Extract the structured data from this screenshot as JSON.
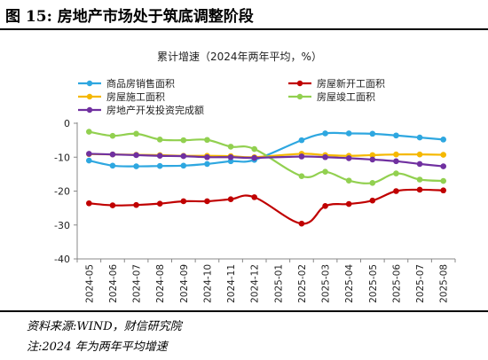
{
  "figure_title": "图 15:  房地产市场处于筑底调整阶段",
  "notes": {
    "source": "资料来源:WIND，财信研究院",
    "note": "注:2024 年为两年平均增速"
  },
  "chart_data": {
    "type": "line",
    "title": "累计增速（2024年两年平均，%）",
    "categories": [
      "2024-05",
      "2024-06",
      "2024-07",
      "2024-08",
      "2024-09",
      "2024-10",
      "2024-11",
      "2024-12",
      "2025-01",
      "2025-02",
      "2025-03",
      "2025-04",
      "2025-05",
      "2025-06",
      "2025-07",
      "2025-08"
    ],
    "ylim": [
      -40,
      0
    ],
    "yticks": [
      0,
      -10,
      -20,
      -30,
      -40
    ],
    "ytick_labels": [
      "0",
      "-10",
      "-20",
      "-30",
      "-40"
    ],
    "grid": false,
    "legend_position": "top",
    "series": [
      {
        "name": "商品房销售面积",
        "color": "#2ea7e0",
        "values": [
          -11,
          -12.5,
          -12.7,
          -12.6,
          -12.5,
          -12,
          -11.2,
          -10.8,
          null,
          -5,
          -3,
          -3,
          -3.1,
          -3.6,
          -4.2,
          -4.8
        ]
      },
      {
        "name": "房屋新开工面积",
        "color": "#c00000",
        "values": [
          -23.6,
          -24.2,
          -24.1,
          -23.7,
          -23,
          -23,
          -22.4,
          -21.8,
          null,
          -29.6,
          -24.4,
          -23.8,
          -22.8,
          -20,
          -19.6,
          -19.8
        ]
      },
      {
        "name": "房屋施工面积",
        "color": "#f5b800",
        "values": [
          -9.1,
          -9.2,
          -9.3,
          -9.4,
          -9.6,
          -9.6,
          -9.7,
          -10,
          null,
          -9,
          -9.4,
          -9.6,
          -9.4,
          -9.2,
          -9.2,
          -9.3
        ]
      },
      {
        "name": "房屋竣工面积",
        "color": "#92d050",
        "values": [
          -2.5,
          -3.7,
          -3.1,
          -4.8,
          -5,
          -4.9,
          -6.9,
          -7.6,
          null,
          -15.6,
          -14.3,
          -16.9,
          -17.6,
          -14.8,
          -16.6,
          -17
        ]
      },
      {
        "name": "房地产开发投资完成额",
        "color": "#7030a0",
        "values": [
          -9,
          -9.2,
          -9.4,
          -9.6,
          -9.7,
          -10,
          -10,
          -10.2,
          null,
          -9.8,
          -10,
          -10.3,
          -10.7,
          -11.2,
          -12,
          -12.7
        ]
      }
    ]
  }
}
